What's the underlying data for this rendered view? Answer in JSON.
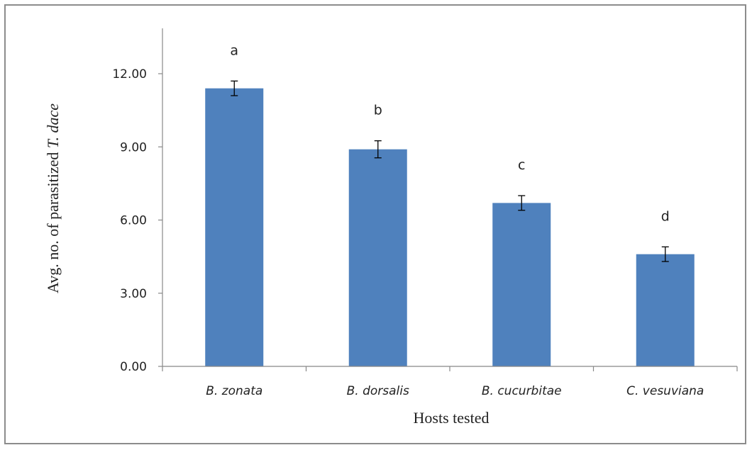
{
  "chart_data": {
    "type": "bar",
    "categories": [
      "B. zonata",
      "B. dorsalis",
      "B. cucurbitae",
      "C. vesuviana"
    ],
    "values": [
      11.4,
      8.9,
      6.7,
      4.6
    ],
    "errors": [
      0.3,
      0.35,
      0.3,
      0.3
    ],
    "significance_letters": [
      "a",
      "b",
      "c",
      "d"
    ],
    "xlabel": "Hosts tested",
    "ylabel_prefix": "Avg. no. of parasitized ",
    "ylabel_species": "T. dace",
    "ylim": [
      0,
      13.5
    ],
    "yticks": [
      0,
      3,
      6,
      9,
      12
    ],
    "ytick_labels": [
      "0.00",
      "3.00",
      "6.00",
      "9.00",
      "12.00"
    ],
    "bar_color": "#4f81bd",
    "grid": false,
    "legend": "none"
  }
}
